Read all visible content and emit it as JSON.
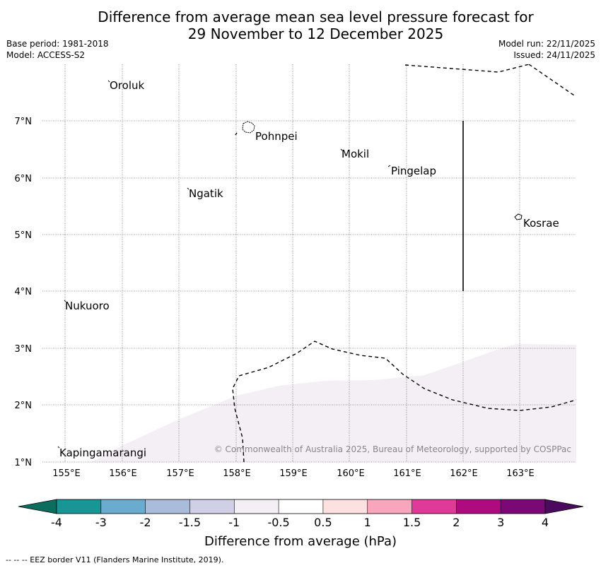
{
  "title": {
    "line1": "Difference from average mean sea level pressure forecast for",
    "line2": "29 November to 12 December 2025"
  },
  "meta": {
    "base_period": "Base period: 1981-2018",
    "model": "Model: ACCESS-S2",
    "model_run": "Model run: 22/11/2025",
    "issued": "Issued: 24/11/2025"
  },
  "map": {
    "lon_labels": [
      "155°E",
      "156°E",
      "157°E",
      "158°E",
      "159°E",
      "160°E",
      "161°E",
      "162°E",
      "163°E"
    ],
    "lat_labels": [
      "7°N",
      "6°N",
      "5°N",
      "4°N",
      "3°N",
      "2°N",
      "1°N"
    ],
    "places": {
      "oroluk": "Oroluk",
      "pohnpei": "Pohnpei",
      "mokil": "Mokil",
      "pingelap": "Pingelap",
      "ngatik": "Ngatik",
      "kosrae": "Kosrae",
      "nukuoro": "Nukuoro",
      "kapingamarangi": "Kapingamarangi"
    },
    "copyright": "© Commonwealth of Australia 2025, Bureau of Meteorology, supported by COSPPac",
    "shading_color": "#f4eef5"
  },
  "colorbar": {
    "label": "Difference from average (hPa)",
    "ticks": [
      "-4",
      "-3",
      "-2",
      "-1.5",
      "-1",
      "-0.5",
      "0.5",
      "1",
      "1.5",
      "2",
      "3",
      "4"
    ],
    "colors": [
      "#1a9596",
      "#6aabd0",
      "#a9bcd9",
      "#cfd0e6",
      "#f4eef5",
      "#ffffff",
      "#fde0e0",
      "#f9a5bc",
      "#df3a98",
      "#ae0b80",
      "#7c0877"
    ],
    "under_color": "#0b6d5e",
    "over_color": "#4c0a5e"
  },
  "footnote": "-- -- -- EEZ border V11 (Flanders Marine Institute, 2019)."
}
